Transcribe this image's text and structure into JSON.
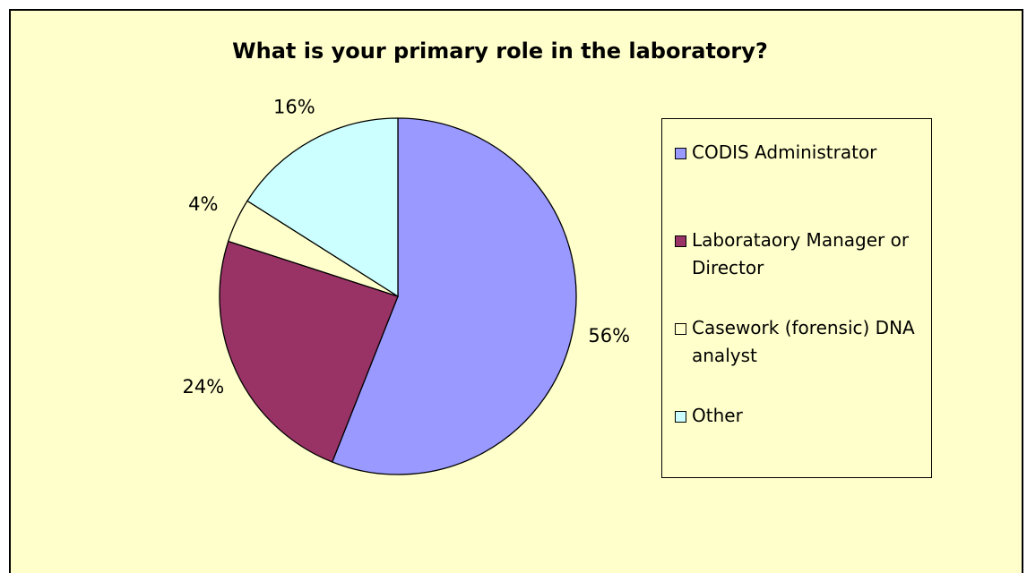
{
  "chart_data": {
    "type": "pie",
    "title": "What is your primary role in the laboratory?",
    "categories": [
      "CODIS Administrator",
      "Laborataory Manager or Director",
      "Casework (forensic) DNA analyst",
      "Other"
    ],
    "values": [
      56,
      24,
      4,
      16
    ],
    "value_labels": [
      "56%",
      "24%",
      "4%",
      "16%"
    ],
    "colors": [
      "#9999ff",
      "#993366",
      "#ffffcc",
      "#ccffff"
    ],
    "legend": "right"
  }
}
